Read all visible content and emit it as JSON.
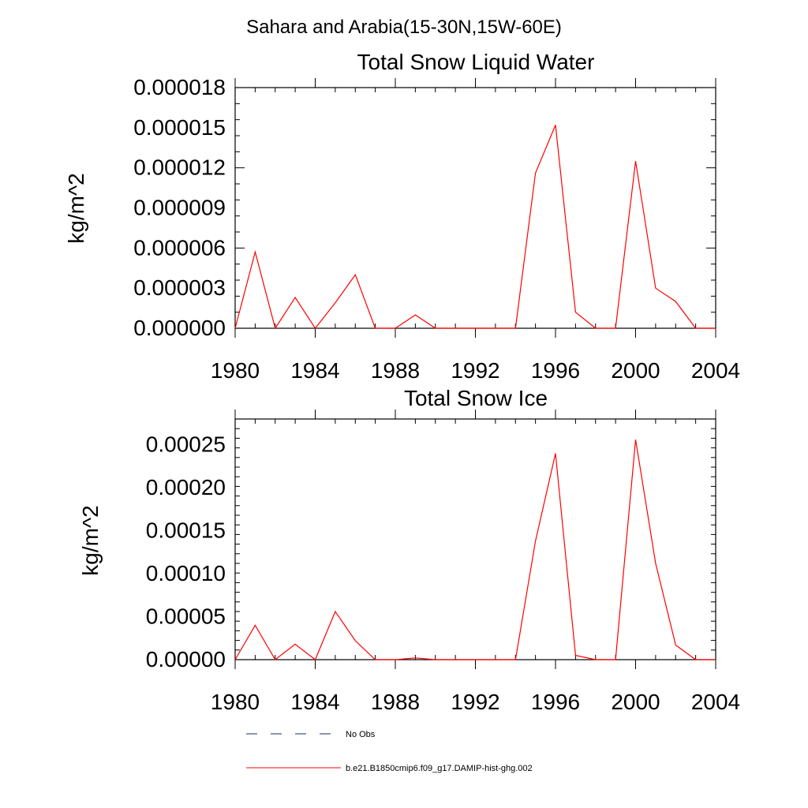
{
  "figure_title": "Sahara and Arabia(15-30N,15W-60E)",
  "legend": {
    "entries": [
      {
        "label": "No Obs",
        "style": "dashed",
        "color": "#1a2a6c"
      },
      {
        "label": "b.e21.B1850cmip6.f09_g17.DAMIP-hist-ghg.002",
        "style": "solid",
        "color": "#ff0000"
      }
    ]
  },
  "chart_data": [
    {
      "type": "line",
      "title": "Total Snow Liquid Water",
      "ylabel": "kg/m^2",
      "xlabel": "",
      "xlim": [
        1980,
        2004
      ],
      "ylim": [
        0,
        1.8e-05
      ],
      "xticks": [
        1980,
        1984,
        1988,
        1992,
        1996,
        2000,
        2004
      ],
      "xtick_labels": [
        "1980",
        "1984",
        "1988",
        "1992",
        "1996",
        "2000",
        "2004"
      ],
      "yticks": [
        0,
        3e-06,
        6e-06,
        9e-06,
        1.2e-05,
        1.5e-05,
        1.8e-05
      ],
      "ytick_labels": [
        "0.000000",
        "0.000003",
        "0.000006",
        "0.000009",
        "0.000012",
        "0.000015",
        "0.000018"
      ],
      "series": [
        {
          "name": "b.e21.B1850cmip6.f09_g17.DAMIP-hist-ghg.002",
          "color": "#ff0000",
          "x": [
            1980,
            1981,
            1982,
            1983,
            1984,
            1985,
            1986,
            1987,
            1988,
            1989,
            1990,
            1991,
            1992,
            1993,
            1994,
            1995,
            1996,
            1997,
            1998,
            1999,
            2000,
            2001,
            2002,
            2003,
            2004
          ],
          "y": [
            0,
            5.7e-06,
            0,
            2.3e-06,
            0,
            1.9e-06,
            4e-06,
            0,
            0,
            1e-06,
            0,
            0,
            0,
            0,
            0,
            1.16e-05,
            1.52e-05,
            1.2e-06,
            0,
            0,
            1.25e-05,
            3e-06,
            2e-06,
            0,
            0
          ]
        }
      ]
    },
    {
      "type": "line",
      "title": "Total Snow Ice",
      "ylabel": "kg/m^2",
      "xlabel": "",
      "xlim": [
        1980,
        2004
      ],
      "ylim": [
        0,
        0.00028
      ],
      "xticks": [
        1980,
        1984,
        1988,
        1992,
        1996,
        2000,
        2004
      ],
      "xtick_labels": [
        "1980",
        "1984",
        "1988",
        "1992",
        "1996",
        "2000",
        "2004"
      ],
      "yticks": [
        0,
        5e-05,
        0.0001,
        0.00015,
        0.0002,
        0.00025
      ],
      "ytick_labels": [
        "0.00000",
        "0.00005",
        "0.00010",
        "0.00015",
        "0.00020",
        "0.00025"
      ],
      "series": [
        {
          "name": "b.e21.B1850cmip6.f09_g17.DAMIP-hist-ghg.002",
          "color": "#ff0000",
          "x": [
            1980,
            1981,
            1982,
            1983,
            1984,
            1985,
            1986,
            1987,
            1988,
            1989,
            1990,
            1991,
            1992,
            1993,
            1994,
            1995,
            1996,
            1997,
            1998,
            1999,
            2000,
            2001,
            2002,
            2003,
            2004
          ],
          "y": [
            0,
            4e-05,
            0,
            1.8e-05,
            0,
            5.6e-05,
            2.2e-05,
            0,
            0,
            2e-06,
            0,
            0,
            0,
            0,
            0,
            0.000138,
            0.00024,
            5e-06,
            0,
            0,
            0.000256,
            0.000112,
            1.7e-05,
            0,
            0
          ]
        }
      ]
    }
  ]
}
